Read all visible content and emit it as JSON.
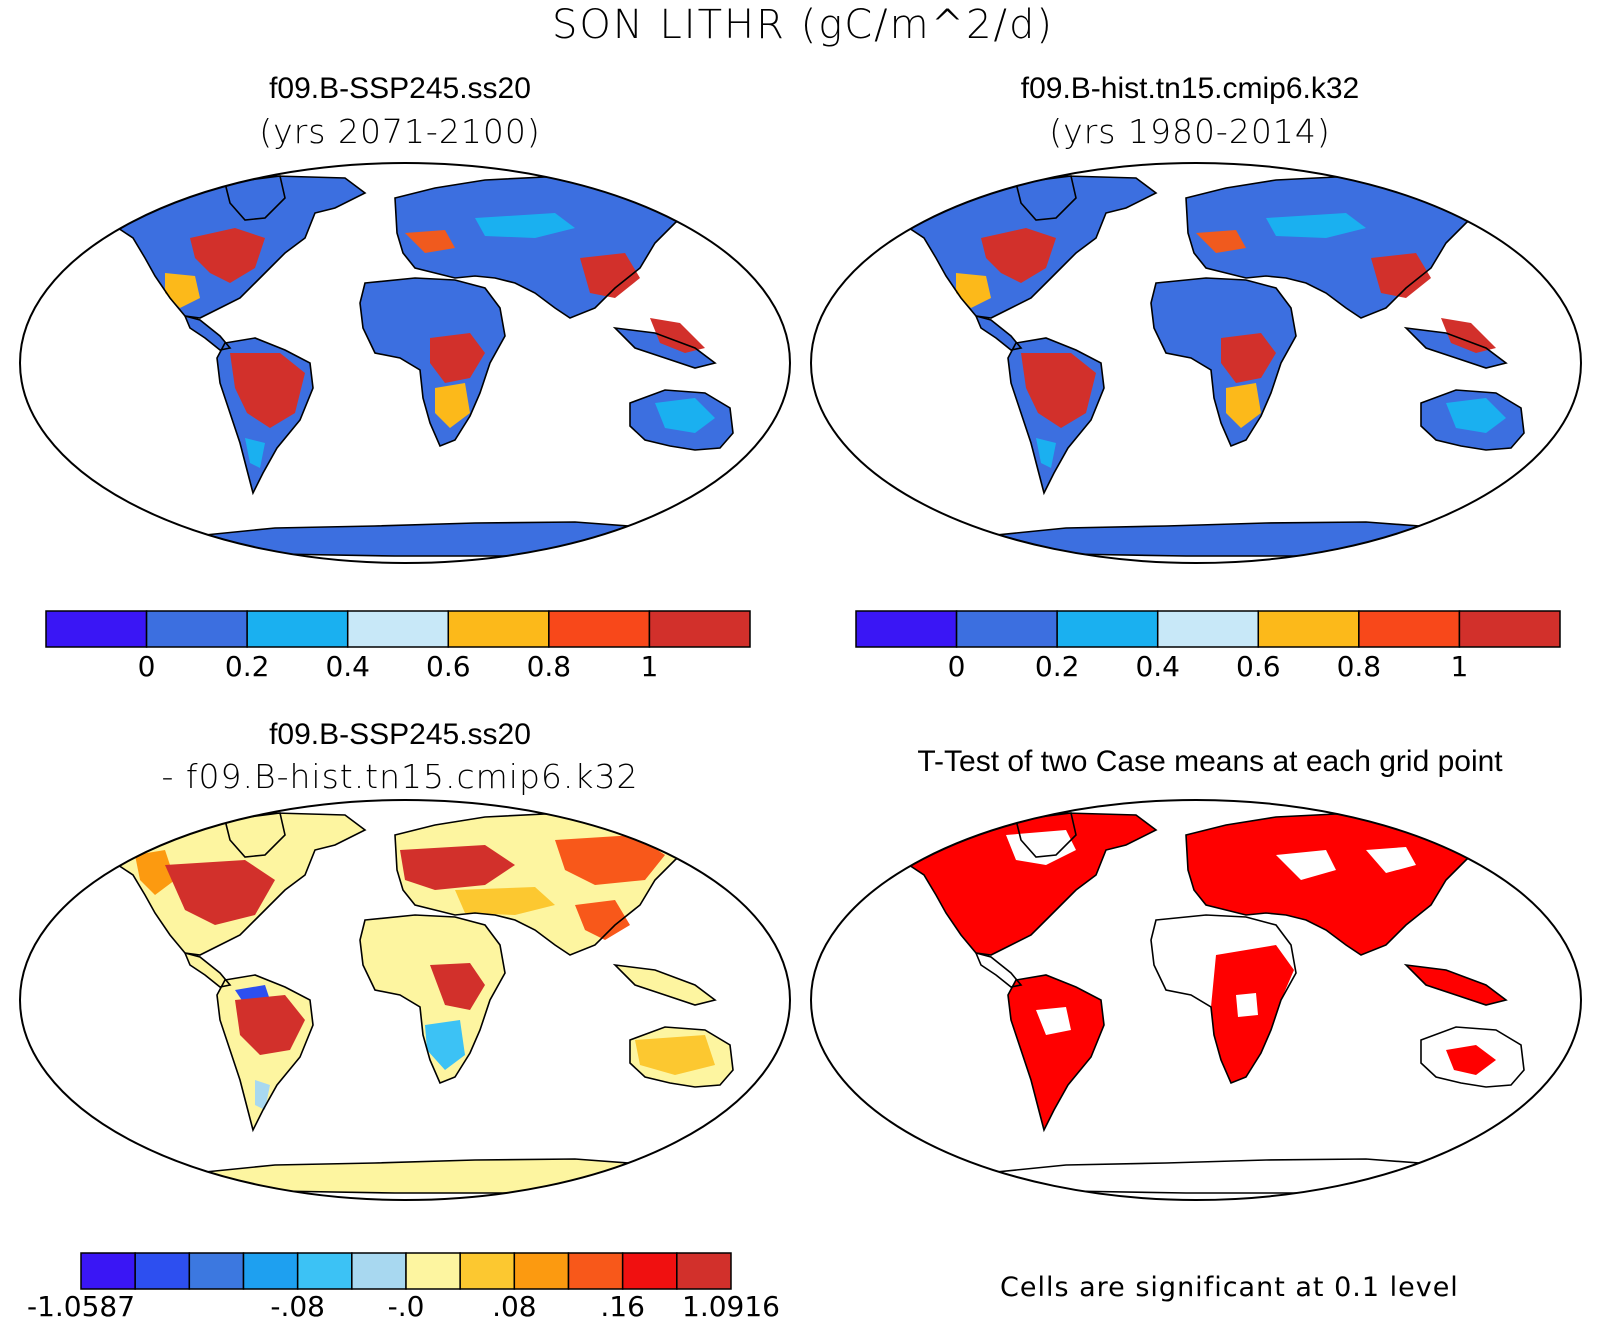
{
  "title": "SON LITHR (gC/m^2/d)",
  "colors": {
    "ocean": "#ffffff",
    "land_low": "#3c6fe0",
    "land_mid": "#1ab0f0",
    "land_high": "#d2302b",
    "land_orange": "#f05a1e",
    "diff_neutral": "#fdf5a0",
    "significance": "#ff0000",
    "coastline": "#000000"
  },
  "panels": [
    {
      "id": "top-left",
      "title": "f09.B-SSP245.ss20",
      "subtitle": "(yrs 2071-2100)",
      "kind": "field"
    },
    {
      "id": "top-right",
      "title": "f09.B-hist.tn15.cmip6.k32",
      "subtitle": "(yrs 1980-2014)",
      "kind": "field"
    },
    {
      "id": "bottom-left",
      "title": "f09.B-SSP245.ss20",
      "subtitle": "- f09.B-hist.tn15.cmip6.k32",
      "kind": "difference"
    },
    {
      "id": "bottom-right",
      "title": "T-Test of two Case means at each grid point",
      "subtitle": "",
      "kind": "ttest",
      "footnote": "Cells are significant at 0.1 level"
    }
  ],
  "colorbar_field": {
    "colors": [
      "#3a16f5",
      "#3c6fe0",
      "#1ab0f0",
      "#c8e8f8",
      "#fcb91a",
      "#f8481a",
      "#d2302b"
    ],
    "labels": [
      "0",
      "0.2",
      "0.4",
      "0.6",
      "0.8",
      "1"
    ]
  },
  "colorbar_diff": {
    "colors": [
      "#3a16f5",
      "#2d4ff0",
      "#3c78e0",
      "#1ea0f0",
      "#3cc2f5",
      "#a8d8f0",
      "#fdf5a0",
      "#fcc830",
      "#fc9a10",
      "#f8581a",
      "#f01010",
      "#d2302b"
    ],
    "labels": [
      "-1.0587",
      "-.08",
      "-.0",
      ".08",
      ".16",
      "1.0916"
    ]
  }
}
